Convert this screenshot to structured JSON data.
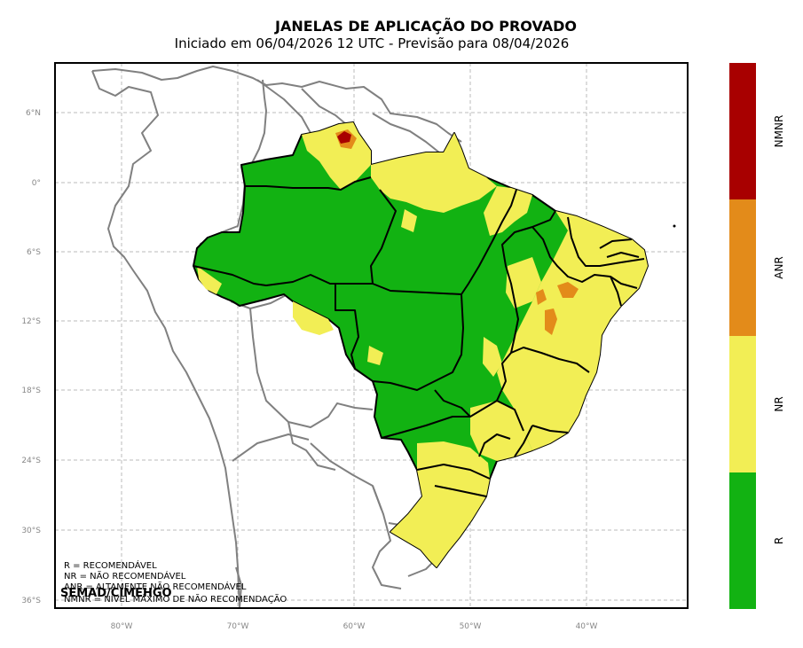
{
  "title": "JANELAS DE APLICAÇÃO DO PROVADO",
  "subtitle": "Iniciado em 06/04/2026 12 UTC - Previsão para 08/04/2026",
  "lat_ticks": [
    "6°N",
    "0°",
    "6°S",
    "12°S",
    "18°S",
    "24°S",
    "30°S",
    "36°S"
  ],
  "lon_ticks": [
    "80°W",
    "70°W",
    "60°W",
    "50°W",
    "40°W"
  ],
  "colorbar": {
    "labels": [
      "NMNR",
      "ANR",
      "NR",
      "R"
    ],
    "colors": [
      "#a80000",
      "#e38b1a",
      "#f2ee55",
      "#12b212"
    ]
  },
  "legend_notes": [
    "R = RECOMENDÁVEL",
    "NR = NÃO RECOMENDÁVEL",
    "ANR = ALTAMENTE NÃO RECOMENDÁVEL",
    "NMNR = NÍVEL MÁXIMO DE NÃO RECOMENDAÇÃO"
  ],
  "credit": "SEMAD/CIMEHGO",
  "colors": {
    "R": "#12b212",
    "NR": "#f2ee55",
    "ANR": "#e38b1a",
    "NMNR": "#a80000",
    "grid": "#bbbbbb",
    "country_border": "#808080",
    "state_border": "#000000"
  }
}
